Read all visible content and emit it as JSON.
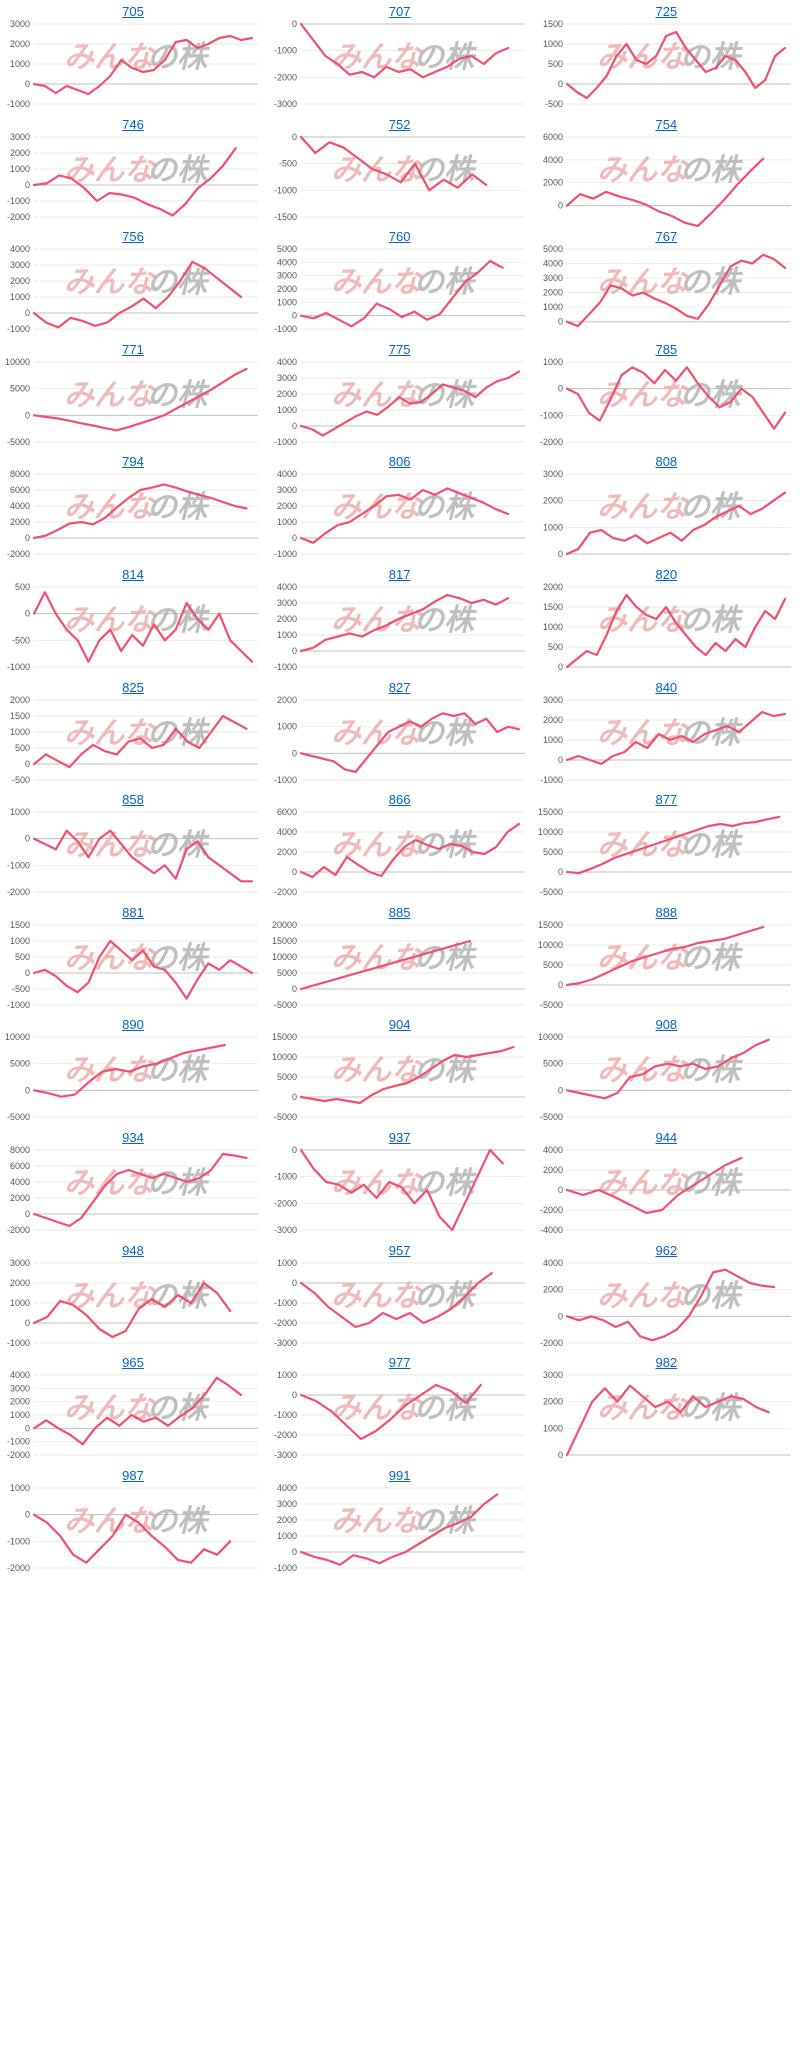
{
  "page": {
    "watermark_left": "みんな",
    "watermark_right": "の株",
    "line_color": "#f0506e"
  },
  "chart_data": [
    {
      "type": "line",
      "title": "705",
      "yticks": [
        -1000,
        0,
        1000,
        2000,
        3000
      ],
      "ylim": [
        -1000,
        3000
      ],
      "values": [
        0,
        -100,
        -450,
        -100,
        -300,
        -500,
        -100,
        400,
        1200,
        800,
        600,
        700,
        1200,
        2100,
        2200,
        1800,
        2000,
        2300,
        2400,
        2200,
        2300
      ]
    },
    {
      "type": "line",
      "title": "707",
      "yticks": [
        -3000,
        -2000,
        -1000,
        0
      ],
      "ylim": [
        -3000,
        0
      ],
      "values": [
        0,
        -600,
        -1200,
        -1500,
        -1900,
        -1800,
        -2000,
        -1600,
        -1800,
        -1700,
        -2000,
        -1800,
        -1600,
        -1300,
        -1200,
        -1500,
        -1100,
        -900
      ]
    },
    {
      "type": "line",
      "title": "725",
      "yticks": [
        -500,
        0,
        500,
        1000,
        1500
      ],
      "ylim": [
        -500,
        1500
      ],
      "values": [
        0,
        -200,
        -350,
        -100,
        200,
        700,
        1000,
        600,
        500,
        700,
        1200,
        1300,
        900,
        600,
        300,
        400,
        700,
        600,
        300,
        -100,
        100,
        700,
        900
      ]
    },
    {
      "type": "line",
      "title": "746",
      "yticks": [
        -2000,
        -1000,
        0,
        1000,
        2000,
        3000
      ],
      "ylim": [
        -2000,
        3000
      ],
      "values": [
        0,
        100,
        600,
        400,
        -200,
        -1000,
        -500,
        -600,
        -800,
        -1200,
        -1500,
        -1900,
        -1200,
        -200,
        400,
        1200,
        2300
      ]
    },
    {
      "type": "line",
      "title": "752",
      "yticks": [
        -1500,
        -1000,
        -500,
        0
      ],
      "ylim": [
        -1500,
        0
      ],
      "values": [
        0,
        -300,
        -100,
        -200,
        -400,
        -600,
        -700,
        -850,
        -500,
        -1000,
        -800,
        -950,
        -700,
        -900
      ]
    },
    {
      "type": "line",
      "title": "754",
      "yticks": [
        0,
        2000,
        4000,
        6000
      ],
      "ylim": [
        -1000,
        6000
      ],
      "values": [
        0,
        1000,
        600,
        1200,
        800,
        500,
        100,
        -500,
        -900,
        -1500,
        -1800,
        -700,
        500,
        1800,
        3000,
        4100
      ]
    },
    {
      "type": "line",
      "title": "756",
      "yticks": [
        -1000,
        0,
        1000,
        2000,
        3000,
        4000
      ],
      "ylim": [
        -1000,
        4000
      ],
      "values": [
        0,
        -600,
        -900,
        -300,
        -500,
        -800,
        -600,
        0,
        400,
        900,
        300,
        1000,
        2000,
        3200,
        2800,
        2200,
        1600,
        1000
      ]
    },
    {
      "type": "line",
      "title": "760",
      "yticks": [
        -1000,
        0,
        1000,
        2000,
        3000,
        4000,
        5000
      ],
      "ylim": [
        -1000,
        5000
      ],
      "values": [
        0,
        -200,
        200,
        -300,
        -800,
        -200,
        900,
        500,
        -100,
        300,
        -300,
        100,
        1300,
        2500,
        3200,
        4100,
        3600
      ]
    },
    {
      "type": "line",
      "title": "767",
      "yticks": [
        0,
        1000,
        2000,
        3000,
        4000,
        5000
      ],
      "ylim": [
        -500,
        5000
      ],
      "values": [
        0,
        -300,
        500,
        1300,
        2500,
        2300,
        1800,
        2000,
        1600,
        1300,
        900,
        400,
        200,
        1200,
        2500,
        3800,
        4200,
        4000,
        4600,
        4300,
        3700
      ]
    },
    {
      "type": "line",
      "title": "771",
      "yticks": [
        -5000,
        0,
        5000,
        10000
      ],
      "ylim": [
        -5000,
        10000
      ],
      "values": [
        0,
        -300,
        -600,
        -1000,
        -1500,
        -1900,
        -2400,
        -2800,
        -2200,
        -1500,
        -800,
        0,
        1200,
        2400,
        3600,
        4800,
        6200,
        7600,
        8700
      ]
    },
    {
      "type": "line",
      "title": "775",
      "yticks": [
        -1000,
        0,
        1000,
        2000,
        3000,
        4000
      ],
      "ylim": [
        -1000,
        4000
      ],
      "values": [
        0,
        -200,
        -600,
        -200,
        200,
        600,
        900,
        700,
        1200,
        1800,
        1400,
        1500,
        2000,
        2600,
        2400,
        2200,
        1800,
        2400,
        2800,
        3000,
        3400
      ]
    },
    {
      "type": "line",
      "title": "785",
      "yticks": [
        -2000,
        -1000,
        0,
        1000
      ],
      "ylim": [
        -2000,
        1000
      ],
      "values": [
        0,
        -200,
        -900,
        -1200,
        -400,
        500,
        800,
        600,
        200,
        700,
        300,
        800,
        200,
        -300,
        -700,
        -500,
        0,
        -300,
        -900,
        -1500,
        -900
      ]
    },
    {
      "type": "line",
      "title": "794",
      "yticks": [
        -2000,
        0,
        2000,
        4000,
        6000,
        8000
      ],
      "ylim": [
        -2000,
        8000
      ],
      "values": [
        0,
        300,
        1000,
        1800,
        2000,
        1700,
        2500,
        3800,
        5000,
        6000,
        6300,
        6700,
        6300,
        5800,
        5400,
        5000,
        4500,
        4000,
        3700
      ]
    },
    {
      "type": "line",
      "title": "806",
      "yticks": [
        -1000,
        0,
        1000,
        2000,
        3000,
        4000
      ],
      "ylim": [
        -1000,
        4000
      ],
      "values": [
        0,
        -300,
        300,
        800,
        1000,
        1500,
        2000,
        2600,
        2700,
        2400,
        3000,
        2700,
        3100,
        2800,
        2500,
        2200,
        1800,
        1500
      ]
    },
    {
      "type": "line",
      "title": "808",
      "yticks": [
        0,
        1000,
        2000,
        3000
      ],
      "ylim": [
        0,
        3000
      ],
      "values": [
        0,
        200,
        800,
        900,
        600,
        500,
        700,
        400,
        600,
        800,
        500,
        900,
        1100,
        1400,
        1600,
        1800,
        1500,
        1700,
        2000,
        2300
      ]
    },
    {
      "type": "line",
      "title": "814",
      "yticks": [
        -1000,
        -500,
        0,
        500
      ],
      "ylim": [
        -1000,
        500
      ],
      "values": [
        0,
        400,
        0,
        -300,
        -500,
        -900,
        -500,
        -300,
        -700,
        -400,
        -600,
        -200,
        -500,
        -300,
        200,
        -100,
        -300,
        0,
        -500,
        -700,
        -900
      ]
    },
    {
      "type": "line",
      "title": "817",
      "yticks": [
        -1000,
        0,
        1000,
        2000,
        3000,
        4000
      ],
      "ylim": [
        -1000,
        4000
      ],
      "values": [
        0,
        200,
        700,
        900,
        1100,
        900,
        1300,
        1600,
        2000,
        2300,
        2600,
        3100,
        3500,
        3300,
        3000,
        3200,
        2900,
        3300
      ]
    },
    {
      "type": "line",
      "title": "820",
      "yticks": [
        0,
        500,
        1000,
        1500,
        2000
      ],
      "ylim": [
        0,
        2000
      ],
      "values": [
        0,
        200,
        400,
        300,
        800,
        1400,
        1800,
        1500,
        1300,
        1200,
        1500,
        1100,
        800,
        500,
        300,
        600,
        400,
        700,
        500,
        1000,
        1400,
        1200,
        1700
      ]
    },
    {
      "type": "line",
      "title": "825",
      "yticks": [
        -500,
        0,
        500,
        1000,
        1500,
        2000
      ],
      "ylim": [
        -500,
        2000
      ],
      "values": [
        0,
        300,
        100,
        -100,
        300,
        600,
        400,
        300,
        700,
        800,
        500,
        600,
        1100,
        700,
        500,
        1000,
        1500,
        1300,
        1100
      ]
    },
    {
      "type": "line",
      "title": "827",
      "yticks": [
        -1000,
        0,
        1000,
        2000
      ],
      "ylim": [
        -1000,
        2000
      ],
      "values": [
        0,
        -100,
        -200,
        -300,
        -600,
        -700,
        -200,
        300,
        800,
        1000,
        1200,
        1000,
        1300,
        1500,
        1400,
        1500,
        1100,
        1300,
        800,
        1000,
        900
      ]
    },
    {
      "type": "line",
      "title": "840",
      "yticks": [
        -1000,
        0,
        1000,
        2000,
        3000
      ],
      "ylim": [
        -1000,
        3000
      ],
      "values": [
        0,
        200,
        0,
        -200,
        200,
        400,
        900,
        600,
        1300,
        1000,
        1200,
        900,
        1300,
        1500,
        1700,
        1400,
        1900,
        2400,
        2200,
        2300
      ]
    },
    {
      "type": "line",
      "title": "858",
      "yticks": [
        -2000,
        -1000,
        0,
        1000
      ],
      "ylim": [
        -2000,
        1000
      ],
      "values": [
        0,
        -200,
        -400,
        300,
        -100,
        -700,
        0,
        300,
        -200,
        -700,
        -1000,
        -1300,
        -1000,
        -1500,
        -400,
        -100,
        -700,
        -1000,
        -1300,
        -1600,
        -1600
      ]
    },
    {
      "type": "line",
      "title": "866",
      "yticks": [
        -2000,
        0,
        2000,
        4000,
        6000
      ],
      "ylim": [
        -2000,
        6000
      ],
      "values": [
        0,
        -500,
        500,
        -300,
        1500,
        700,
        0,
        -400,
        1200,
        2500,
        3200,
        2700,
        2300,
        2800,
        2600,
        2000,
        1800,
        2500,
        4000,
        4800
      ]
    },
    {
      "type": "line",
      "title": "877",
      "yticks": [
        -5000,
        0,
        5000,
        10000,
        15000
      ],
      "ylim": [
        -5000,
        15000
      ],
      "values": [
        0,
        -300,
        800,
        2000,
        3500,
        4500,
        5500,
        6500,
        7500,
        8500,
        9500,
        10500,
        11500,
        12000,
        11500,
        12200,
        12500,
        13200,
        13800
      ]
    },
    {
      "type": "line",
      "title": "881",
      "yticks": [
        -1000,
        -500,
        0,
        500,
        1000,
        1500
      ],
      "ylim": [
        -1000,
        1500
      ],
      "values": [
        0,
        100,
        -100,
        -400,
        -600,
        -300,
        500,
        1000,
        700,
        400,
        700,
        200,
        100,
        -300,
        -800,
        -200,
        300,
        100,
        400,
        200,
        0
      ]
    },
    {
      "type": "line",
      "title": "885",
      "yticks": [
        -5000,
        0,
        5000,
        10000,
        15000,
        20000
      ],
      "ylim": [
        -5000,
        20000
      ],
      "values": [
        0,
        1500,
        3000,
        4500,
        6000,
        7500,
        9000,
        10500,
        12000,
        13500,
        15000
      ]
    },
    {
      "type": "line",
      "title": "888",
      "yticks": [
        -5000,
        0,
        5000,
        10000,
        15000
      ],
      "ylim": [
        -5000,
        15000
      ],
      "values": [
        0,
        500,
        1500,
        3000,
        4500,
        6000,
        7000,
        8000,
        9000,
        9500,
        10500,
        11000,
        11500,
        12500,
        13500,
        14500
      ]
    },
    {
      "type": "line",
      "title": "890",
      "yticks": [
        -5000,
        0,
        5000,
        10000
      ],
      "ylim": [
        -5000,
        10000
      ],
      "values": [
        0,
        -500,
        -1200,
        -800,
        1500,
        3500,
        4000,
        3500,
        4500,
        5000,
        6000,
        7000,
        7500,
        8000,
        8500
      ]
    },
    {
      "type": "line",
      "title": "904",
      "yticks": [
        -5000,
        0,
        5000,
        10000,
        15000
      ],
      "ylim": [
        -5000,
        15000
      ],
      "values": [
        0,
        -500,
        -1000,
        -500,
        -1000,
        -1500,
        500,
        2000,
        2800,
        3500,
        5000,
        7000,
        9000,
        10500,
        10000,
        10500,
        11000,
        11500,
        12500
      ]
    },
    {
      "type": "line",
      "title": "908",
      "yticks": [
        -5000,
        0,
        5000,
        10000
      ],
      "ylim": [
        -5000,
        10000
      ],
      "values": [
        0,
        -500,
        -1000,
        -1500,
        -500,
        2500,
        3000,
        4500,
        5000,
        4500,
        5000,
        4000,
        4500,
        6000,
        7000,
        8500,
        9500
      ]
    },
    {
      "type": "line",
      "title": "934",
      "yticks": [
        -2000,
        0,
        2000,
        4000,
        6000,
        8000
      ],
      "ylim": [
        -2000,
        8000
      ],
      "values": [
        0,
        -500,
        -1000,
        -1500,
        -500,
        1500,
        3500,
        5000,
        5500,
        5000,
        4500,
        5000,
        4500,
        4000,
        4500,
        5500,
        7500,
        7300,
        7000
      ]
    },
    {
      "type": "line",
      "title": "937",
      "yticks": [
        -3000,
        -2000,
        -1000,
        0
      ],
      "ylim": [
        -3000,
        0
      ],
      "values": [
        0,
        -700,
        -1200,
        -1300,
        -1600,
        -1300,
        -1800,
        -1200,
        -1400,
        -2000,
        -1500,
        -2500,
        -3000,
        -2000,
        -1000,
        0,
        -500
      ]
    },
    {
      "type": "line",
      "title": "944",
      "yticks": [
        -4000,
        -2000,
        0,
        2000,
        4000
      ],
      "ylim": [
        -4000,
        4000
      ],
      "values": [
        0,
        -500,
        0,
        -700,
        -1500,
        -2300,
        -2000,
        -500,
        500,
        1500,
        2500,
        3200
      ]
    },
    {
      "type": "line",
      "title": "948",
      "yticks": [
        -1000,
        0,
        1000,
        2000,
        3000
      ],
      "ylim": [
        -1000,
        3000
      ],
      "values": [
        0,
        300,
        1100,
        900,
        400,
        -300,
        -700,
        -400,
        700,
        1200,
        800,
        1400,
        1000,
        2000,
        1500,
        600
      ]
    },
    {
      "type": "line",
      "title": "957",
      "yticks": [
        -3000,
        -2000,
        -1000,
        0,
        1000
      ],
      "ylim": [
        -3000,
        1000
      ],
      "values": [
        0,
        -500,
        -1200,
        -1700,
        -2200,
        -2000,
        -1500,
        -1800,
        -1500,
        -2000,
        -1700,
        -1300,
        -700,
        0,
        500
      ]
    },
    {
      "type": "line",
      "title": "962",
      "yticks": [
        -2000,
        0,
        2000,
        4000
      ],
      "ylim": [
        -2000,
        4000
      ],
      "values": [
        0,
        -300,
        0,
        -300,
        -800,
        -400,
        -1500,
        -1800,
        -1500,
        -1000,
        0,
        1500,
        3300,
        3500,
        3000,
        2500,
        2300,
        2200
      ]
    },
    {
      "type": "line",
      "title": "965",
      "yticks": [
        -2000,
        -1000,
        0,
        1000,
        2000,
        3000,
        4000
      ],
      "ylim": [
        -2000,
        4000
      ],
      "values": [
        0,
        600,
        0,
        -500,
        -1200,
        0,
        800,
        200,
        1000,
        500,
        800,
        200,
        900,
        1500,
        2500,
        3800,
        3200,
        2500
      ]
    },
    {
      "type": "line",
      "title": "977",
      "yticks": [
        -3000,
        -2000,
        -1000,
        0,
        1000
      ],
      "ylim": [
        -3000,
        1000
      ],
      "values": [
        0,
        -300,
        -800,
        -1500,
        -2200,
        -1800,
        -1200,
        -500,
        0,
        500,
        200,
        -400,
        500
      ]
    },
    {
      "type": "line",
      "title": "982",
      "yticks": [
        0,
        1000,
        2000,
        3000
      ],
      "ylim": [
        0,
        3000
      ],
      "values": [
        0,
        1000,
        2000,
        2500,
        2000,
        2600,
        2200,
        1800,
        2000,
        1600,
        2200,
        1800,
        2000,
        2200,
        2100,
        1800,
        1600
      ]
    },
    {
      "type": "line",
      "title": "987",
      "yticks": [
        -2000,
        -1000,
        0,
        1000
      ],
      "ylim": [
        -2000,
        1000
      ],
      "values": [
        0,
        -300,
        -800,
        -1500,
        -1800,
        -1300,
        -800,
        0,
        -300,
        -800,
        -1200,
        -1700,
        -1800,
        -1300,
        -1500,
        -1000
      ]
    },
    {
      "type": "line",
      "title": "991",
      "yticks": [
        -1000,
        0,
        1000,
        2000,
        3000,
        4000
      ],
      "ylim": [
        -1000,
        4000
      ],
      "values": [
        0,
        -300,
        -500,
        -800,
        -200,
        -400,
        -700,
        -300,
        0,
        500,
        1000,
        1500,
        1800,
        2200,
        3000,
        3600
      ]
    }
  ]
}
